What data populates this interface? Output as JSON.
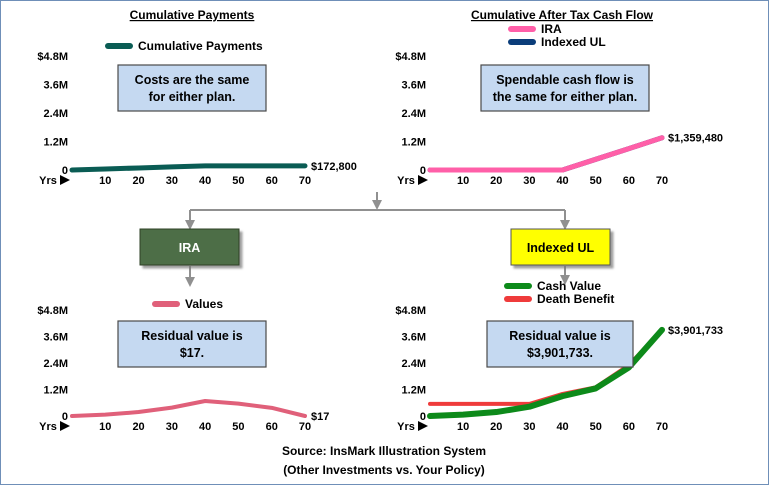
{
  "chart_data": [
    {
      "type": "line",
      "title": "Cumulative Payments",
      "x": [
        0,
        10,
        20,
        30,
        40,
        50,
        60,
        70
      ],
      "x_tick_labels": [
        "10",
        "20",
        "30",
        "40",
        "50",
        "60",
        "70"
      ],
      "x_axis_label": "Yrs",
      "y_tick_labels": [
        "$4.8M",
        "3.6M",
        "2.4M",
        "1.2M",
        "0"
      ],
      "ylim": [
        0,
        4800000
      ],
      "series": [
        {
          "name": "Cumulative Payments",
          "color": "#0a5c54",
          "values": [
            0,
            43000,
            86000,
            129000,
            172800,
            172800,
            172800,
            172800
          ]
        }
      ],
      "end_label": "$172,800",
      "callout": [
        "Costs are the same",
        "for either plan."
      ]
    },
    {
      "type": "line",
      "title": "Cumulative After Tax Cash Flow",
      "x": [
        0,
        10,
        20,
        30,
        40,
        50,
        60,
        70
      ],
      "x_tick_labels": [
        "10",
        "20",
        "30",
        "40",
        "50",
        "60",
        "70"
      ],
      "x_axis_label": "Yrs",
      "y_tick_labels": [
        "$4.8M",
        "3.6M",
        "2.4M",
        "1.2M",
        "0"
      ],
      "ylim": [
        0,
        4800000
      ],
      "series": [
        {
          "name": "Indexed UL",
          "color": "#0b3d7a",
          "values": [
            0,
            0,
            0,
            0,
            0,
            450000,
            900000,
            1359480
          ]
        },
        {
          "name": "IRA",
          "color": "#ff5fa8",
          "values": [
            0,
            0,
            0,
            0,
            0,
            450000,
            900000,
            1359480
          ]
        }
      ],
      "end_label": "$1,359,480",
      "callout": [
        "Spendable cash flow is",
        "the same for either plan."
      ]
    },
    {
      "type": "line",
      "x": [
        0,
        10,
        20,
        30,
        40,
        50,
        60,
        70
      ],
      "x_tick_labels": [
        "10",
        "20",
        "30",
        "40",
        "50",
        "60",
        "70"
      ],
      "x_axis_label": "Yrs",
      "y_tick_labels": [
        "$4.8M",
        "3.6M",
        "2.4M",
        "1.2M",
        "0"
      ],
      "ylim": [
        0,
        4800000
      ],
      "series": [
        {
          "name": "Values",
          "color": "#e0607a",
          "values": [
            0,
            60000,
            180000,
            380000,
            680000,
            560000,
            370000,
            17
          ]
        }
      ],
      "end_label": "$17",
      "callout": [
        "Residual value is",
        "$17."
      ]
    },
    {
      "type": "line",
      "x": [
        0,
        10,
        20,
        30,
        40,
        50,
        60,
        70
      ],
      "x_tick_labels": [
        "10",
        "20",
        "30",
        "40",
        "50",
        "60",
        "70"
      ],
      "x_axis_label": "Yrs",
      "y_tick_labels": [
        "$4.8M",
        "3.6M",
        "2.4M",
        "1.2M",
        "0"
      ],
      "ylim": [
        0,
        4800000
      ],
      "series": [
        {
          "name": "Death Benefit",
          "color": "#ef3b3b",
          "values": [
            550000,
            550000,
            550000,
            550000,
            1000000,
            1300000,
            2300000,
            3901733
          ]
        },
        {
          "name": "Cash Value",
          "color": "#0d8a1a",
          "values": [
            0,
            60000,
            180000,
            420000,
            900000,
            1250000,
            2200000,
            3901733
          ]
        }
      ],
      "end_label": "$3,901,733",
      "callout": [
        "Residual value is",
        "$3,901,733."
      ]
    }
  ],
  "boxes": {
    "ira_label": "IRA",
    "iul_label": "Indexed UL"
  },
  "source": {
    "line1": "Source: InsMark Illustration System",
    "line2": "(Other Investments vs. Your Policy)"
  },
  "colors": {
    "callout_fill": "#c5d9f1",
    "ira_box": "#4e6e46",
    "iul_box": "#ffff00",
    "connector": "#909090"
  }
}
